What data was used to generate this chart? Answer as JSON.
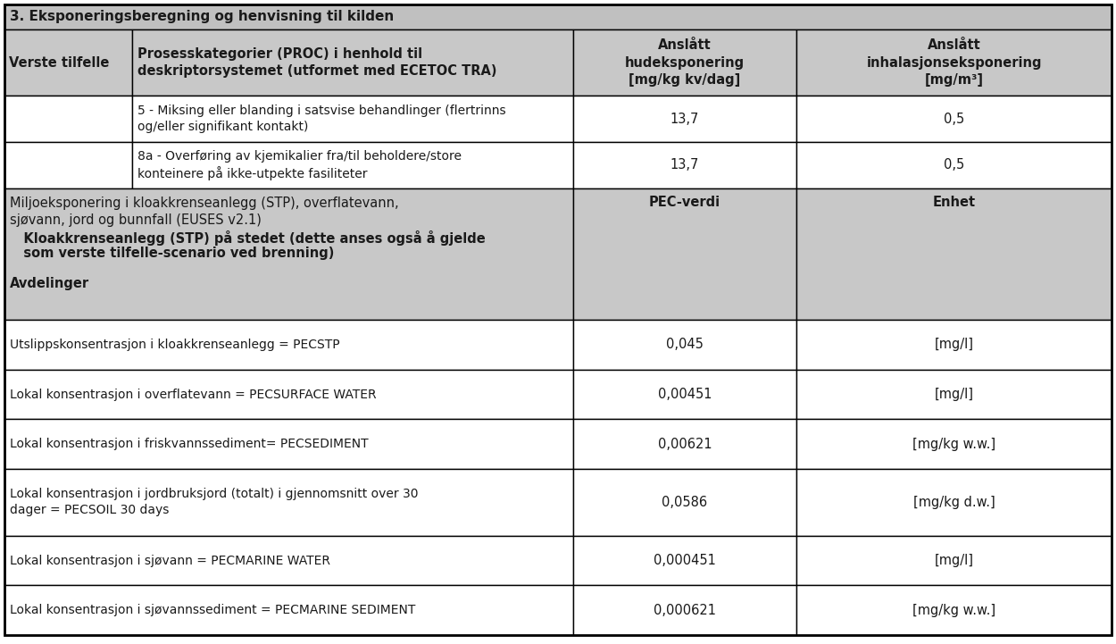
{
  "title": "3. Eksponeringsberegning og henvisning til kilden",
  "title_bg": "#c0c0c0",
  "header_bg": "#c8c8c8",
  "white_bg": "#ffffff",
  "gray_bg": "#c8c8c8",
  "border_color": "#000000",
  "header_row": {
    "col1a": "Verste tilfelle",
    "col1b": "Prosesskategorier (PROC) i henhold til\ndeskriptorsystemet (utformet med ECETOC TRA)",
    "col2": "Anslått\nhudeksponering\n[mg/kg kv/dag]",
    "col3": "Anslått\ninhalasjonseksponering\n[mg/m³]"
  },
  "data_rows": [
    {
      "col1b": "5 - Miksing eller blanding i satsvise behandlinger (flertrinns\nog/eller signifikant kontakt)",
      "col2": "13,7",
      "col3": "0,5",
      "bg": "#ffffff"
    },
    {
      "col1b": "8a - Overføring av kjemikalier fra/til beholdere/store\nkonteinere på ikke-utpekte fasiliteter",
      "col2": "13,7",
      "col3": "0,5",
      "bg": "#ffffff"
    }
  ],
  "env_line1": "Miljoeksponering i kloakkrenseanlegg (STP), overflatevann,",
  "env_line2": "sjøvann, jord og bunnfall (EUSES v2.1)",
  "env_line3": "   Kloakkrenseanlegg (STP) på stedet (dette anses også å gjelde",
  "env_line4": "   som verste tilfelle-scenario ved brenning)",
  "env_line5": "",
  "env_line6": "Avdelinger",
  "env_col2": "PEC-verdi",
  "env_col3": "Enhet",
  "env_bg": "#c8c8c8",
  "bottom_rows": [
    {
      "col1": "Utslippskonsentrasjon i kloakkrenseanlegg = PECSTP",
      "col2": "0,045",
      "col3": "[mg/l]",
      "bg": "#ffffff"
    },
    {
      "col1": "Lokal konsentrasjon i overflatevann = PECSURFACE WATER",
      "col2": "0,00451",
      "col3": "[mg/l]",
      "bg": "#ffffff"
    },
    {
      "col1": "Lokal konsentrasjon i friskvannssediment= PECSEDIMENT",
      "col2": "0,00621",
      "col3": "[mg/kg w.w.]",
      "bg": "#ffffff"
    },
    {
      "col1": "Lokal konsentrasjon i jordbruksjord (totalt) i gjennomsnitt over 30\ndager = PECSOIL 30 days",
      "col2": "0,0586",
      "col3": "[mg/kg d.w.]",
      "bg": "#ffffff"
    },
    {
      "col1": "Lokal konsentrasjon i sjøvann = PECMARINE WATER",
      "col2": "0,000451",
      "col3": "[mg/l]",
      "bg": "#ffffff"
    },
    {
      "col1": "Lokal konsentrasjon i sjøvannssediment = PECMARINE SEDIMENT",
      "col2": "0,000621",
      "col3": "[mg/kg w.w.]",
      "bg": "#ffffff"
    }
  ],
  "lw": 1.0
}
